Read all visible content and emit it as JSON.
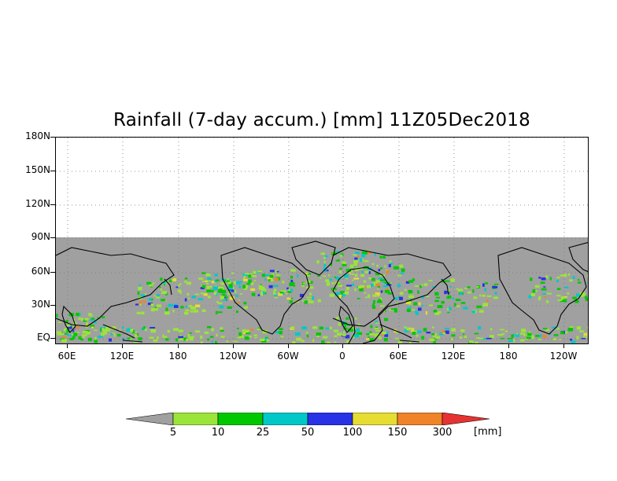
{
  "title": "Rainfall (7-day accum.) [mm] 11Z05Dec2018",
  "y_axis": {
    "ticks": [
      "180N",
      "150N",
      "120N",
      "90N",
      "60N",
      "30N",
      "EQ"
    ]
  },
  "x_axis": {
    "ticks": [
      "60E",
      "120E",
      "180",
      "120W",
      "60W",
      "0",
      "60E",
      "120E",
      "180",
      "120W"
    ]
  },
  "colorbar": {
    "unit": "[mm]",
    "labels": [
      "5",
      "10",
      "25",
      "50",
      "100",
      "150",
      "300"
    ],
    "colors": [
      "#a0a0a0",
      "#9be439",
      "#00c800",
      "#00c8c8",
      "#2832e6",
      "#e6dc32",
      "#f08228",
      "#e63232"
    ]
  },
  "map": {
    "land_mask_color": "#a0a0a0",
    "no_data_color": "#ffffff",
    "data_coverage": "EQ to 90N",
    "boundary_color": "#000000"
  }
}
